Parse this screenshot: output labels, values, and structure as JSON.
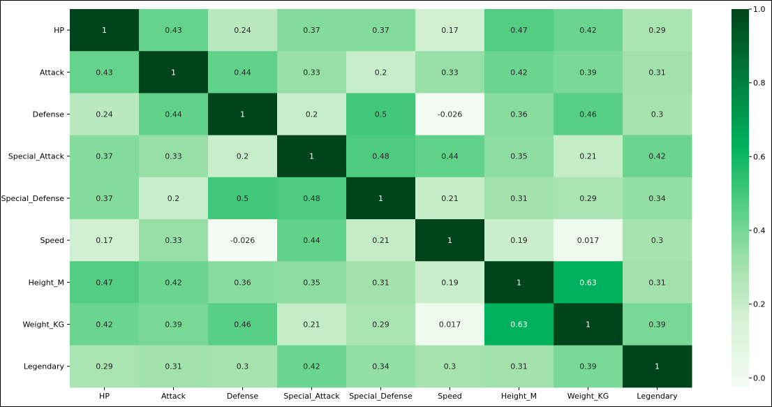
{
  "chart_data": {
    "type": "heatmap",
    "title": "",
    "xlabel": "",
    "ylabel": "",
    "rows": [
      "HP",
      "Attack",
      "Defense",
      "Special_Attack",
      "Special_Defense",
      "Speed",
      "Height_M",
      "Weight_KG",
      "Legendary"
    ],
    "columns": [
      "HP",
      "Attack",
      "Defense",
      "Special_Attack",
      "Special_Defense",
      "Speed",
      "Height_M",
      "Weight_KG",
      "Legendary"
    ],
    "values": [
      [
        1,
        0.43,
        0.24,
        0.37,
        0.37,
        0.17,
        0.47,
        0.42,
        0.29
      ],
      [
        0.43,
        1,
        0.44,
        0.33,
        0.2,
        0.33,
        0.42,
        0.39,
        0.31
      ],
      [
        0.24,
        0.44,
        1,
        0.2,
        0.5,
        -0.026,
        0.36,
        0.46,
        0.3
      ],
      [
        0.37,
        0.33,
        0.2,
        1,
        0.48,
        0.44,
        0.35,
        0.21,
        0.42
      ],
      [
        0.37,
        0.2,
        0.5,
        0.48,
        1,
        0.21,
        0.31,
        0.29,
        0.34
      ],
      [
        0.17,
        0.33,
        -0.026,
        0.44,
        0.21,
        1,
        0.19,
        0.017,
        0.3
      ],
      [
        0.47,
        0.42,
        0.36,
        0.35,
        0.31,
        0.19,
        1,
        0.63,
        0.31
      ],
      [
        0.42,
        0.39,
        0.46,
        0.21,
        0.29,
        0.017,
        0.63,
        1,
        0.39
      ],
      [
        0.29,
        0.31,
        0.3,
        0.42,
        0.34,
        0.3,
        0.31,
        0.39,
        1
      ]
    ],
    "value_labels": [
      [
        "1",
        "0.43",
        "0.24",
        "0.37",
        "0.37",
        "0.17",
        "0.47",
        "0.42",
        "0.29"
      ],
      [
        "0.43",
        "1",
        "0.44",
        "0.33",
        "0.2",
        "0.33",
        "0.42",
        "0.39",
        "0.31"
      ],
      [
        "0.24",
        "0.44",
        "1",
        "0.2",
        "0.5",
        "-0.026",
        "0.36",
        "0.46",
        "0.3"
      ],
      [
        "0.37",
        "0.33",
        "0.2",
        "1",
        "0.48",
        "0.44",
        "0.35",
        "0.21",
        "0.42"
      ],
      [
        "0.37",
        "0.2",
        "0.5",
        "0.48",
        "1",
        "0.21",
        "0.31",
        "0.29",
        "0.34"
      ],
      [
        "0.17",
        "0.33",
        "-0.026",
        "0.44",
        "0.21",
        "1",
        "0.19",
        "0.017",
        "0.3"
      ],
      [
        "0.47",
        "0.42",
        "0.36",
        "0.35",
        "0.31",
        "0.19",
        "1",
        "0.63",
        "0.31"
      ],
      [
        "0.42",
        "0.39",
        "0.46",
        "0.21",
        "0.29",
        "0.017",
        "0.63",
        "1",
        "0.39"
      ],
      [
        "0.29",
        "0.31",
        "0.3",
        "0.42",
        "0.34",
        "0.3",
        "0.31",
        "0.39",
        "1"
      ]
    ],
    "colorbar": {
      "range": [
        -0.026,
        1
      ],
      "ticks": [
        0.0,
        0.2,
        0.4,
        0.6,
        0.8,
        1.0
      ],
      "tick_labels": [
        "0.0",
        "0.2",
        "0.4",
        "0.6",
        "0.8",
        "1.0"
      ]
    },
    "colormap": "Greens-like with bright green mid-band",
    "colors": {
      "stops": [
        {
          "value": -0.026,
          "color": "#f4fcf3"
        },
        {
          "value": 0.15,
          "color": "#d8f2d7"
        },
        {
          "value": 0.3,
          "color": "#a6e3af"
        },
        {
          "value": 0.45,
          "color": "#5cd187"
        },
        {
          "value": 0.63,
          "color": "#00b15c"
        },
        {
          "value": 0.8,
          "color": "#00803e"
        },
        {
          "value": 1.0,
          "color": "#00441b"
        }
      ],
      "text_dark": "#262626",
      "text_light": "#ffffff"
    }
  }
}
